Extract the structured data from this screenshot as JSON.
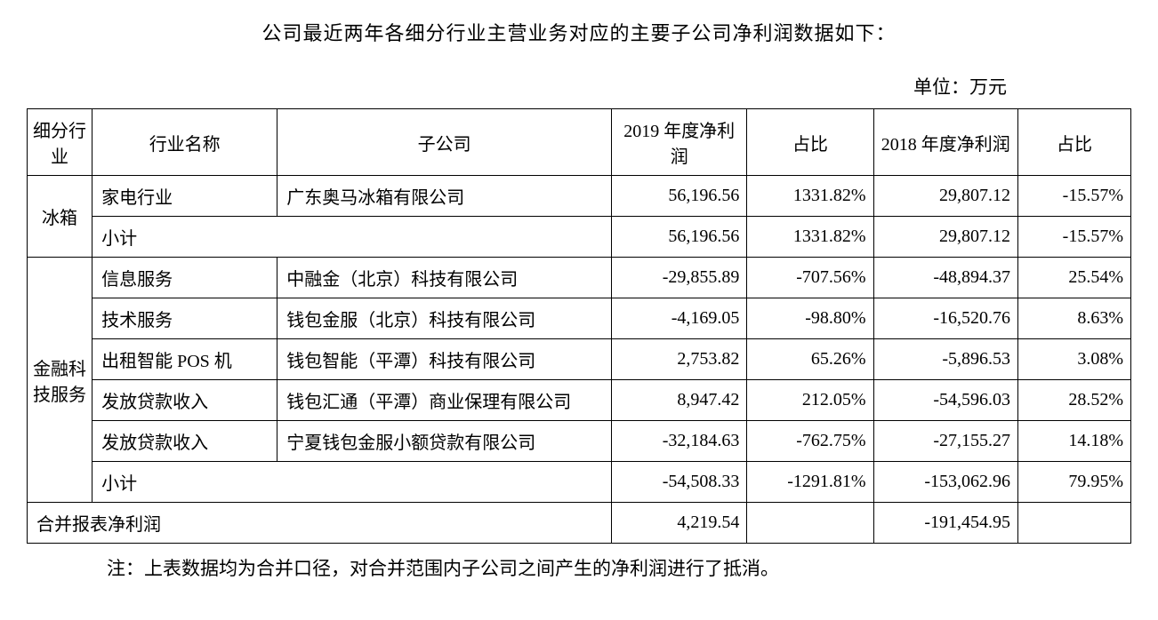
{
  "title": "公司最近两年各细分行业主营业务对应的主要子公司净利润数据如下：",
  "unit": "单位：万元",
  "headers": {
    "segment": "细分行业",
    "name": "行业名称",
    "subsidiary": "子公司",
    "y2019": "2019 年度净利润",
    "pct1": "占比",
    "y2018": "2018 年度净利润",
    "pct2": "占比"
  },
  "segments": {
    "fridge": "冰箱",
    "fintech": "金融科技服务"
  },
  "rows": {
    "r1": {
      "name": "家电行业",
      "sub": "广东奥马冰箱有限公司",
      "v2019": "56,196.56",
      "p1": "1331.82%",
      "v2018": "29,807.12",
      "p2": "-15.57%"
    },
    "r1s": {
      "name": "小计",
      "v2019": "56,196.56",
      "p1": "1331.82%",
      "v2018": "29,807.12",
      "p2": "-15.57%"
    },
    "r2": {
      "name": "信息服务",
      "sub": "中融金（北京）科技有限公司",
      "v2019": "-29,855.89",
      "p1": "-707.56%",
      "v2018": "-48,894.37",
      "p2": "25.54%"
    },
    "r3": {
      "name": "技术服务",
      "sub": "钱包金服（北京）科技有限公司",
      "v2019": "-4,169.05",
      "p1": "-98.80%",
      "v2018": "-16,520.76",
      "p2": "8.63%"
    },
    "r4": {
      "name": "出租智能 POS 机",
      "sub": "钱包智能（平潭）科技有限公司",
      "v2019": "2,753.82",
      "p1": "65.26%",
      "v2018": "-5,896.53",
      "p2": "3.08%"
    },
    "r5": {
      "name": "发放贷款收入",
      "sub": "钱包汇通（平潭）商业保理有限公司",
      "v2019": "8,947.42",
      "p1": "212.05%",
      "v2018": "-54,596.03",
      "p2": "28.52%"
    },
    "r6": {
      "name": "发放贷款收入",
      "sub": "宁夏钱包金服小额贷款有限公司",
      "v2019": "-32,184.63",
      "p1": "-762.75%",
      "v2018": "-27,155.27",
      "p2": "14.18%"
    },
    "r6s": {
      "name": "小计",
      "v2019": "-54,508.33",
      "p1": "-1291.81%",
      "v2018": "-153,062.96",
      "p2": "79.95%"
    },
    "total": {
      "name": "合并报表净利润",
      "v2019": "4,219.54",
      "p1": "",
      "v2018": "-191,454.95",
      "p2": ""
    }
  },
  "footnote": "注：上表数据均为合并口径，对合并范围内子公司之间产生的净利润进行了抵消。"
}
